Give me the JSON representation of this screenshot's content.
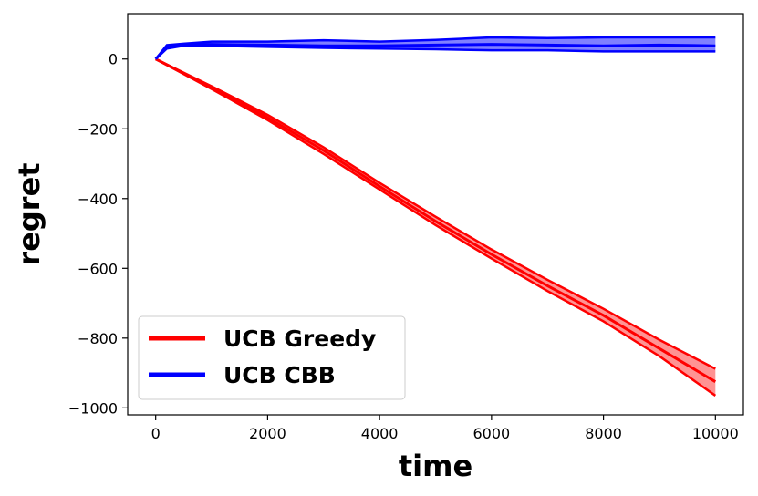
{
  "chart_data": {
    "type": "line",
    "xlabel": "time",
    "ylabel": "regret",
    "xlim": [
      -500,
      10500
    ],
    "ylim": [
      -1020,
      130
    ],
    "xticks": [
      0,
      2000,
      4000,
      6000,
      8000,
      10000
    ],
    "xtick_labels": [
      "0",
      "2000",
      "4000",
      "6000",
      "8000",
      "10000"
    ],
    "yticks": [
      0,
      -200,
      -400,
      -600,
      -800,
      -1000
    ],
    "ytick_labels": [
      "0",
      "−200",
      "−400",
      "−600",
      "−800",
      "−1000"
    ],
    "grid": false,
    "legend_position": "lower-left",
    "series": [
      {
        "name": "UCB Greedy",
        "color": "#ff0000",
        "fill_color": "#ff8080",
        "x": [
          0,
          1000,
          2000,
          3000,
          4000,
          5000,
          6000,
          7000,
          8000,
          9000,
          10000
        ],
        "mean": [
          0,
          -82,
          -168,
          -262,
          -365,
          -465,
          -560,
          -650,
          -735,
          -830,
          -925
        ],
        "upper": [
          0,
          -78,
          -160,
          -253,
          -355,
          -452,
          -546,
          -633,
          -716,
          -805,
          -888
        ],
        "lower": [
          0,
          -86,
          -175,
          -272,
          -374,
          -476,
          -572,
          -665,
          -752,
          -852,
          -965
        ]
      },
      {
        "name": "UCB CBB",
        "color": "#0000ff",
        "fill_color": "#6a6aff",
        "x": [
          0,
          200,
          500,
          1000,
          2000,
          3000,
          4000,
          5000,
          6000,
          7000,
          8000,
          9000,
          10000
        ],
        "mean": [
          0,
          35,
          42,
          42,
          40,
          38,
          38,
          40,
          42,
          40,
          38,
          40,
          38
        ],
        "upper": [
          0,
          40,
          44,
          50,
          50,
          54,
          50,
          55,
          62,
          60,
          62,
          62,
          62
        ],
        "lower": [
          0,
          30,
          38,
          38,
          35,
          32,
          30,
          28,
          25,
          25,
          22,
          22,
          22
        ]
      }
    ]
  }
}
